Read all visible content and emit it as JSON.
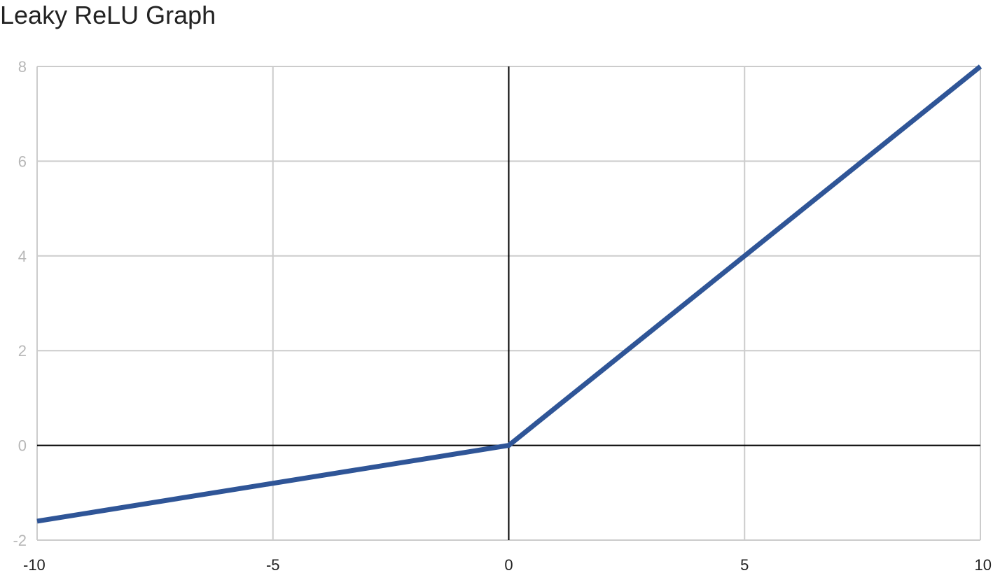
{
  "chart_data": {
    "type": "line",
    "title": "Leaky ReLU Graph",
    "xlabel": "",
    "ylabel": "",
    "xlim": [
      -10,
      10
    ],
    "ylim": [
      -2,
      8
    ],
    "x_ticks": [
      -10,
      -5,
      0,
      5,
      10
    ],
    "y_ticks": [
      -2,
      0,
      2,
      4,
      6,
      8
    ],
    "grid": true,
    "legend": "none",
    "series": [
      {
        "color": "#2f5597",
        "points": [
          {
            "x": -10,
            "y": -1.6
          },
          {
            "x": 0,
            "y": 0
          },
          {
            "x": 10,
            "y": 8
          }
        ]
      }
    ],
    "colors": {
      "grid": "#cccccc",
      "zero_axis": "#000000",
      "tick_y": "#b7b7b7",
      "tick_x": "#222222"
    }
  }
}
